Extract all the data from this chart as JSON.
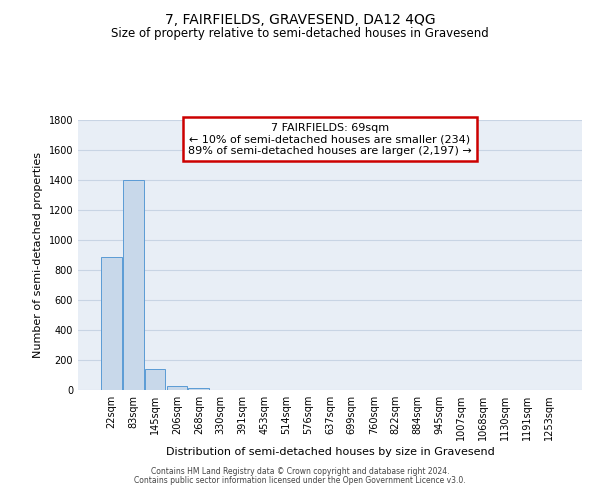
{
  "title": "7, FAIRFIELDS, GRAVESEND, DA12 4QG",
  "subtitle": "Size of property relative to semi-detached houses in Gravesend",
  "xlabel": "Distribution of semi-detached houses by size in Gravesend",
  "ylabel": "Number of semi-detached properties",
  "annotation_line1": "7 FAIRFIELDS: 69sqm",
  "annotation_line2": "← 10% of semi-detached houses are smaller (234)",
  "annotation_line3": "89% of semi-detached houses are larger (2,197) →",
  "bar_labels": [
    "22sqm",
    "83sqm",
    "145sqm",
    "206sqm",
    "268sqm",
    "330sqm",
    "391sqm",
    "453sqm",
    "514sqm",
    "576sqm",
    "637sqm",
    "699sqm",
    "760sqm",
    "822sqm",
    "884sqm",
    "945sqm",
    "1007sqm",
    "1068sqm",
    "1130sqm",
    "1191sqm",
    "1253sqm"
  ],
  "bar_values": [
    890,
    1400,
    140,
    30,
    15,
    0,
    0,
    0,
    0,
    0,
    0,
    0,
    0,
    0,
    0,
    0,
    0,
    0,
    0,
    0,
    0
  ],
  "bar_color": "#c8d8ea",
  "bar_edge_color": "#5b9bd5",
  "ylim": [
    0,
    1800
  ],
  "yticks": [
    0,
    200,
    400,
    600,
    800,
    1000,
    1200,
    1400,
    1600,
    1800
  ],
  "grid_color": "#c8d4e4",
  "background_color": "#e8eef6",
  "annotation_box_color": "#cc0000",
  "title_fontsize": 10,
  "subtitle_fontsize": 8.5,
  "axis_label_fontsize": 8,
  "tick_fontsize": 7,
  "annotation_fontsize": 8,
  "footer_line1": "Contains HM Land Registry data © Crown copyright and database right 2024.",
  "footer_line2": "Contains public sector information licensed under the Open Government Licence v3.0."
}
